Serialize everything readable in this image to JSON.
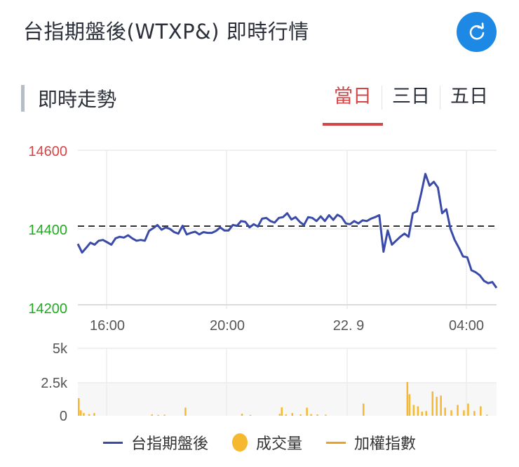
{
  "header": {
    "title": "台指期盤後(WTXP&) 即時行情",
    "refresh_icon": "refresh-icon",
    "refresh_color": "#1e88e5"
  },
  "section": {
    "title": "即時走勢",
    "tabs": [
      {
        "label": "當日",
        "active": true
      },
      {
        "label": "三日",
        "active": false
      },
      {
        "label": "五日",
        "active": false
      }
    ],
    "active_color": "#d64545"
  },
  "chart_data": [
    {
      "type": "line",
      "title": "即時走勢 - 台指期盤後",
      "xlabel": "",
      "ylabel": "",
      "x_ticks": [
        "16:00",
        "20:00",
        "22. 9",
        "04:00"
      ],
      "y_ticks": [
        {
          "value": 14600,
          "label": "14600",
          "color": "#d64545"
        },
        {
          "value": 14400,
          "label": "14400",
          "color": "#22aa22"
        },
        {
          "value": 14200,
          "label": "14200",
          "color": "#22aa22"
        }
      ],
      "ylim": [
        14200,
        14600
      ],
      "reference_line": {
        "value": 14407,
        "style": "dashed",
        "color": "#333333"
      },
      "grid": true,
      "series": [
        {
          "name": "台指期盤後",
          "color": "#3a4aa8",
          "points_x_fraction": [
            0.0,
            0.01,
            0.02,
            0.03,
            0.04,
            0.05,
            0.06,
            0.07,
            0.08,
            0.09,
            0.1,
            0.11,
            0.12,
            0.13,
            0.14,
            0.15,
            0.16,
            0.17,
            0.18,
            0.19,
            0.2,
            0.21,
            0.22,
            0.23,
            0.24,
            0.25,
            0.26,
            0.27,
            0.28,
            0.29,
            0.3,
            0.31,
            0.32,
            0.33,
            0.34,
            0.35,
            0.36,
            0.37,
            0.38,
            0.39,
            0.4,
            0.41,
            0.42,
            0.43,
            0.44,
            0.45,
            0.46,
            0.47,
            0.48,
            0.49,
            0.5,
            0.51,
            0.52,
            0.53,
            0.54,
            0.55,
            0.56,
            0.57,
            0.58,
            0.59,
            0.6,
            0.61,
            0.62,
            0.63,
            0.64,
            0.65,
            0.66,
            0.67,
            0.68,
            0.69,
            0.7,
            0.71,
            0.72,
            0.73,
            0.74,
            0.75,
            0.76,
            0.77,
            0.78,
            0.79,
            0.8,
            0.81,
            0.82,
            0.83,
            0.84,
            0.85,
            0.86,
            0.87,
            0.88,
            0.89,
            0.9,
            0.91,
            0.92,
            0.93,
            0.94,
            0.95,
            0.96,
            0.97,
            0.98,
            0.99,
            1.0
          ],
          "values": [
            14362,
            14340,
            14352,
            14365,
            14360,
            14370,
            14372,
            14366,
            14360,
            14376,
            14380,
            14378,
            14384,
            14376,
            14370,
            14372,
            14370,
            14395,
            14402,
            14410,
            14398,
            14404,
            14400,
            14392,
            14388,
            14408,
            14386,
            14390,
            14393,
            14386,
            14392,
            14390,
            14390,
            14395,
            14404,
            14396,
            14396,
            14410,
            14408,
            14420,
            14418,
            14404,
            14412,
            14406,
            14426,
            14428,
            14420,
            14416,
            14428,
            14430,
            14440,
            14424,
            14430,
            14418,
            14410,
            14430,
            14428,
            14420,
            14432,
            14420,
            14435,
            14423,
            14436,
            14430,
            14414,
            14412,
            14420,
            14414,
            14422,
            14420,
            14426,
            14430,
            14435,
            14342,
            14396,
            14360,
            14370,
            14380,
            14388,
            14380,
            14440,
            14445,
            14490,
            14540,
            14510,
            14520,
            14505,
            14440,
            14450,
            14400,
            14372,
            14352,
            14330,
            14328,
            14295,
            14290,
            14282,
            14268,
            14262,
            14265,
            14250
          ]
        }
      ]
    },
    {
      "type": "bar",
      "title": "成交量",
      "y_ticks": [
        "5k",
        "2.5k",
        "0"
      ],
      "ylim": [
        0,
        5000
      ],
      "color": "#f5b82e",
      "series": [
        {
          "name": "成交量",
          "bars": [
            {
              "x_fraction": 0.0,
              "value": 1300
            },
            {
              "x_fraction": 0.005,
              "value": 400
            },
            {
              "x_fraction": 0.012,
              "value": 200
            },
            {
              "x_fraction": 0.025,
              "value": 120
            },
            {
              "x_fraction": 0.037,
              "value": 200
            },
            {
              "x_fraction": 0.175,
              "value": 100
            },
            {
              "x_fraction": 0.19,
              "value": 60
            },
            {
              "x_fraction": 0.205,
              "value": 80
            },
            {
              "x_fraction": 0.255,
              "value": 600
            },
            {
              "x_fraction": 0.39,
              "value": 150
            },
            {
              "x_fraction": 0.41,
              "value": 60
            },
            {
              "x_fraction": 0.48,
              "value": 140
            },
            {
              "x_fraction": 0.485,
              "value": 620
            },
            {
              "x_fraction": 0.495,
              "value": 100
            },
            {
              "x_fraction": 0.51,
              "value": 200
            },
            {
              "x_fraction": 0.53,
              "value": 100
            },
            {
              "x_fraction": 0.545,
              "value": 600
            },
            {
              "x_fraction": 0.555,
              "value": 120
            },
            {
              "x_fraction": 0.57,
              "value": 100
            },
            {
              "x_fraction": 0.59,
              "value": 80
            },
            {
              "x_fraction": 0.68,
              "value": 900
            },
            {
              "x_fraction": 0.785,
              "value": 2500
            },
            {
              "x_fraction": 0.79,
              "value": 1600
            },
            {
              "x_fraction": 0.8,
              "value": 800
            },
            {
              "x_fraction": 0.81,
              "value": 700
            },
            {
              "x_fraction": 0.82,
              "value": 300
            },
            {
              "x_fraction": 0.83,
              "value": 350
            },
            {
              "x_fraction": 0.845,
              "value": 1800
            },
            {
              "x_fraction": 0.855,
              "value": 1400
            },
            {
              "x_fraction": 0.865,
              "value": 1500
            },
            {
              "x_fraction": 0.875,
              "value": 600
            },
            {
              "x_fraction": 0.89,
              "value": 400
            },
            {
              "x_fraction": 0.905,
              "value": 800
            },
            {
              "x_fraction": 0.92,
              "value": 400
            },
            {
              "x_fraction": 0.93,
              "value": 900
            },
            {
              "x_fraction": 0.945,
              "value": 350
            },
            {
              "x_fraction": 0.96,
              "value": 700
            },
            {
              "x_fraction": 0.975,
              "value": 80
            }
          ]
        }
      ]
    }
  ],
  "legend": [
    {
      "label": "台指期盤後",
      "marker": "line",
      "color": "#3a4aa8"
    },
    {
      "label": "成交量",
      "marker": "dot",
      "color": "#f5b82e"
    },
    {
      "label": "加權指數",
      "marker": "line",
      "color": "#f0a020"
    }
  ]
}
